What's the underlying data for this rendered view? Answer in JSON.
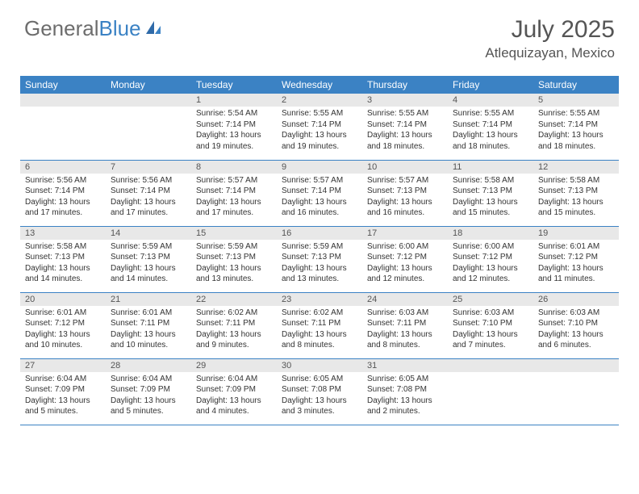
{
  "brand": {
    "part1": "General",
    "part2": "Blue"
  },
  "title": "July 2025",
  "location": "Atlequizayan, Mexico",
  "colors": {
    "header_bg": "#3b82c4",
    "header_text": "#ffffff",
    "daynum_bg": "#e8e8e8",
    "border": "#3b82c4",
    "body_text": "#333333",
    "title_text": "#555555"
  },
  "day_labels": [
    "Sunday",
    "Monday",
    "Tuesday",
    "Wednesday",
    "Thursday",
    "Friday",
    "Saturday"
  ],
  "weeks": [
    [
      null,
      null,
      {
        "n": "1",
        "sr": "5:54 AM",
        "ss": "7:14 PM",
        "dl": "13 hours and 19 minutes."
      },
      {
        "n": "2",
        "sr": "5:55 AM",
        "ss": "7:14 PM",
        "dl": "13 hours and 19 minutes."
      },
      {
        "n": "3",
        "sr": "5:55 AM",
        "ss": "7:14 PM",
        "dl": "13 hours and 18 minutes."
      },
      {
        "n": "4",
        "sr": "5:55 AM",
        "ss": "7:14 PM",
        "dl": "13 hours and 18 minutes."
      },
      {
        "n": "5",
        "sr": "5:55 AM",
        "ss": "7:14 PM",
        "dl": "13 hours and 18 minutes."
      }
    ],
    [
      {
        "n": "6",
        "sr": "5:56 AM",
        "ss": "7:14 PM",
        "dl": "13 hours and 17 minutes."
      },
      {
        "n": "7",
        "sr": "5:56 AM",
        "ss": "7:14 PM",
        "dl": "13 hours and 17 minutes."
      },
      {
        "n": "8",
        "sr": "5:57 AM",
        "ss": "7:14 PM",
        "dl": "13 hours and 17 minutes."
      },
      {
        "n": "9",
        "sr": "5:57 AM",
        "ss": "7:14 PM",
        "dl": "13 hours and 16 minutes."
      },
      {
        "n": "10",
        "sr": "5:57 AM",
        "ss": "7:13 PM",
        "dl": "13 hours and 16 minutes."
      },
      {
        "n": "11",
        "sr": "5:58 AM",
        "ss": "7:13 PM",
        "dl": "13 hours and 15 minutes."
      },
      {
        "n": "12",
        "sr": "5:58 AM",
        "ss": "7:13 PM",
        "dl": "13 hours and 15 minutes."
      }
    ],
    [
      {
        "n": "13",
        "sr": "5:58 AM",
        "ss": "7:13 PM",
        "dl": "13 hours and 14 minutes."
      },
      {
        "n": "14",
        "sr": "5:59 AM",
        "ss": "7:13 PM",
        "dl": "13 hours and 14 minutes."
      },
      {
        "n": "15",
        "sr": "5:59 AM",
        "ss": "7:13 PM",
        "dl": "13 hours and 13 minutes."
      },
      {
        "n": "16",
        "sr": "5:59 AM",
        "ss": "7:13 PM",
        "dl": "13 hours and 13 minutes."
      },
      {
        "n": "17",
        "sr": "6:00 AM",
        "ss": "7:12 PM",
        "dl": "13 hours and 12 minutes."
      },
      {
        "n": "18",
        "sr": "6:00 AM",
        "ss": "7:12 PM",
        "dl": "13 hours and 12 minutes."
      },
      {
        "n": "19",
        "sr": "6:01 AM",
        "ss": "7:12 PM",
        "dl": "13 hours and 11 minutes."
      }
    ],
    [
      {
        "n": "20",
        "sr": "6:01 AM",
        "ss": "7:12 PM",
        "dl": "13 hours and 10 minutes."
      },
      {
        "n": "21",
        "sr": "6:01 AM",
        "ss": "7:11 PM",
        "dl": "13 hours and 10 minutes."
      },
      {
        "n": "22",
        "sr": "6:02 AM",
        "ss": "7:11 PM",
        "dl": "13 hours and 9 minutes."
      },
      {
        "n": "23",
        "sr": "6:02 AM",
        "ss": "7:11 PM",
        "dl": "13 hours and 8 minutes."
      },
      {
        "n": "24",
        "sr": "6:03 AM",
        "ss": "7:11 PM",
        "dl": "13 hours and 8 minutes."
      },
      {
        "n": "25",
        "sr": "6:03 AM",
        "ss": "7:10 PM",
        "dl": "13 hours and 7 minutes."
      },
      {
        "n": "26",
        "sr": "6:03 AM",
        "ss": "7:10 PM",
        "dl": "13 hours and 6 minutes."
      }
    ],
    [
      {
        "n": "27",
        "sr": "6:04 AM",
        "ss": "7:09 PM",
        "dl": "13 hours and 5 minutes."
      },
      {
        "n": "28",
        "sr": "6:04 AM",
        "ss": "7:09 PM",
        "dl": "13 hours and 5 minutes."
      },
      {
        "n": "29",
        "sr": "6:04 AM",
        "ss": "7:09 PM",
        "dl": "13 hours and 4 minutes."
      },
      {
        "n": "30",
        "sr": "6:05 AM",
        "ss": "7:08 PM",
        "dl": "13 hours and 3 minutes."
      },
      {
        "n": "31",
        "sr": "6:05 AM",
        "ss": "7:08 PM",
        "dl": "13 hours and 2 minutes."
      },
      null,
      null
    ]
  ],
  "labels": {
    "sunrise": "Sunrise:",
    "sunset": "Sunset:",
    "daylight": "Daylight:"
  }
}
